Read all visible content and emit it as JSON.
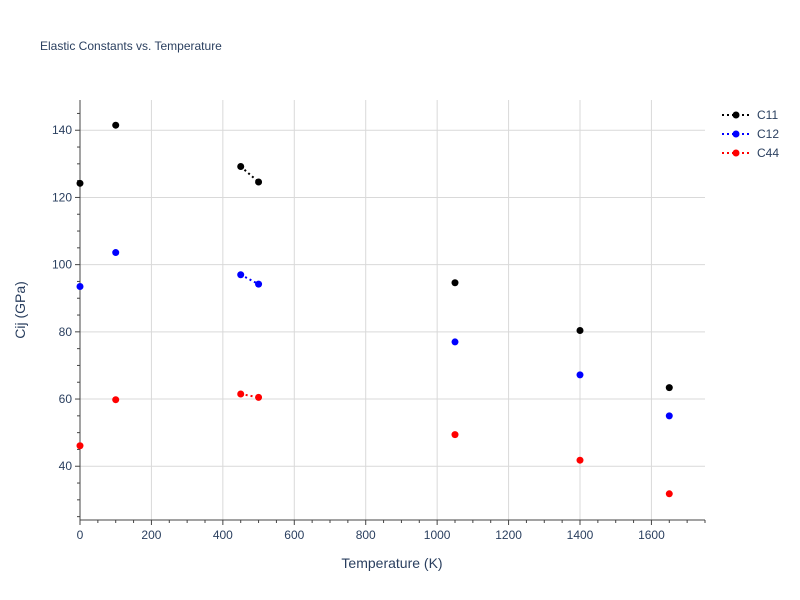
{
  "chart_data": {
    "type": "line",
    "title": "Elastic Constants vs. Temperature",
    "xlabel": "Temperature (K)",
    "ylabel": "Cij (GPa)",
    "xlim": [
      0,
      1750
    ],
    "ylim": [
      24,
      149
    ],
    "xticks": [
      0,
      200,
      400,
      600,
      800,
      1000,
      1200,
      1400,
      1600
    ],
    "yticks": [
      40,
      60,
      80,
      100,
      120,
      140
    ],
    "grid": true,
    "legend": "top-right",
    "series": [
      {
        "name": "C11",
        "color": "#000000",
        "points": [
          {
            "x": 0,
            "y": 124.2
          },
          {
            "x": 100,
            "y": 141.5
          },
          {
            "x": 450,
            "y": 129.2
          },
          {
            "x": 500,
            "y": 124.6
          },
          {
            "x": 1050,
            "y": 94.6
          },
          {
            "x": 1400,
            "y": 80.4
          },
          {
            "x": 1650,
            "y": 63.4
          }
        ],
        "segments": [
          [
            2,
            3
          ]
        ]
      },
      {
        "name": "C12",
        "color": "#0000ff",
        "points": [
          {
            "x": 0,
            "y": 93.5
          },
          {
            "x": 100,
            "y": 103.6
          },
          {
            "x": 450,
            "y": 97.0
          },
          {
            "x": 500,
            "y": 94.2
          },
          {
            "x": 1050,
            "y": 77.0
          },
          {
            "x": 1400,
            "y": 67.2
          },
          {
            "x": 1650,
            "y": 55.0
          }
        ],
        "segments": [
          [
            2,
            3
          ]
        ]
      },
      {
        "name": "C44",
        "color": "#ff0000",
        "points": [
          {
            "x": 0,
            "y": 46.1
          },
          {
            "x": 100,
            "y": 59.8
          },
          {
            "x": 450,
            "y": 61.5
          },
          {
            "x": 500,
            "y": 60.5
          },
          {
            "x": 1050,
            "y": 49.4
          },
          {
            "x": 1400,
            "y": 41.8
          },
          {
            "x": 1650,
            "y": 31.8
          }
        ],
        "segments": [
          [
            2,
            3
          ]
        ]
      }
    ]
  }
}
